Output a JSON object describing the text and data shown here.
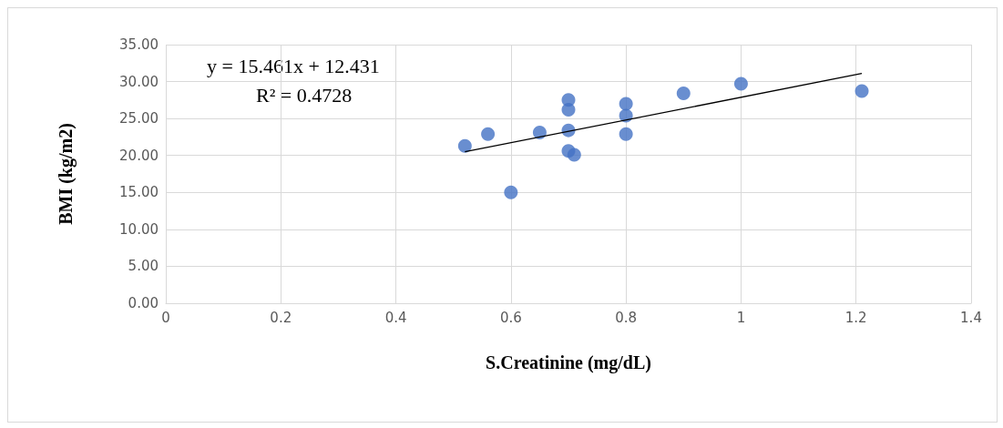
{
  "chart_data": {
    "type": "scatter",
    "xlabel": "S.Creatinine (mg/dL)",
    "ylabel": "BMI (kg/m2)",
    "xlim": [
      0,
      1.4
    ],
    "xticks": [
      0,
      0.2,
      0.4,
      0.6,
      0.8,
      1,
      1.2,
      1.4
    ],
    "ylim": [
      0,
      35
    ],
    "yticks": [
      {
        "value": 0,
        "label": "0.00"
      },
      {
        "value": 5,
        "label": "5.00"
      },
      {
        "value": 10,
        "label": "10.00"
      },
      {
        "value": 15,
        "label": "15.00"
      },
      {
        "value": 20,
        "label": "20.00"
      },
      {
        "value": 25,
        "label": "25.00"
      },
      {
        "value": 30,
        "label": "30.00"
      },
      {
        "value": 35,
        "label": "35.00"
      }
    ],
    "grid": true,
    "marker": "circle",
    "annotations": [
      "y = 15.461x + 12.431",
      "R² = 0.4728"
    ],
    "series": [
      {
        "color": "#4472c4",
        "x": [
          0.52,
          0.56,
          0.6,
          0.65,
          0.7,
          0.7,
          0.7,
          0.7,
          0.71,
          0.8,
          0.8,
          0.8,
          0.9,
          1.0,
          1.21
        ],
        "values": [
          21.3,
          22.9,
          15.0,
          23.1,
          27.5,
          26.2,
          23.4,
          20.6,
          20.1,
          27.0,
          25.4,
          22.9,
          28.4,
          29.7,
          28.7
        ]
      },
      {
        "type": "line",
        "color": "#000000",
        "marker": "none",
        "line_style": "solid",
        "x": [
          0.52,
          1.21
        ],
        "values": [
          20.5,
          31.1
        ]
      }
    ]
  }
}
